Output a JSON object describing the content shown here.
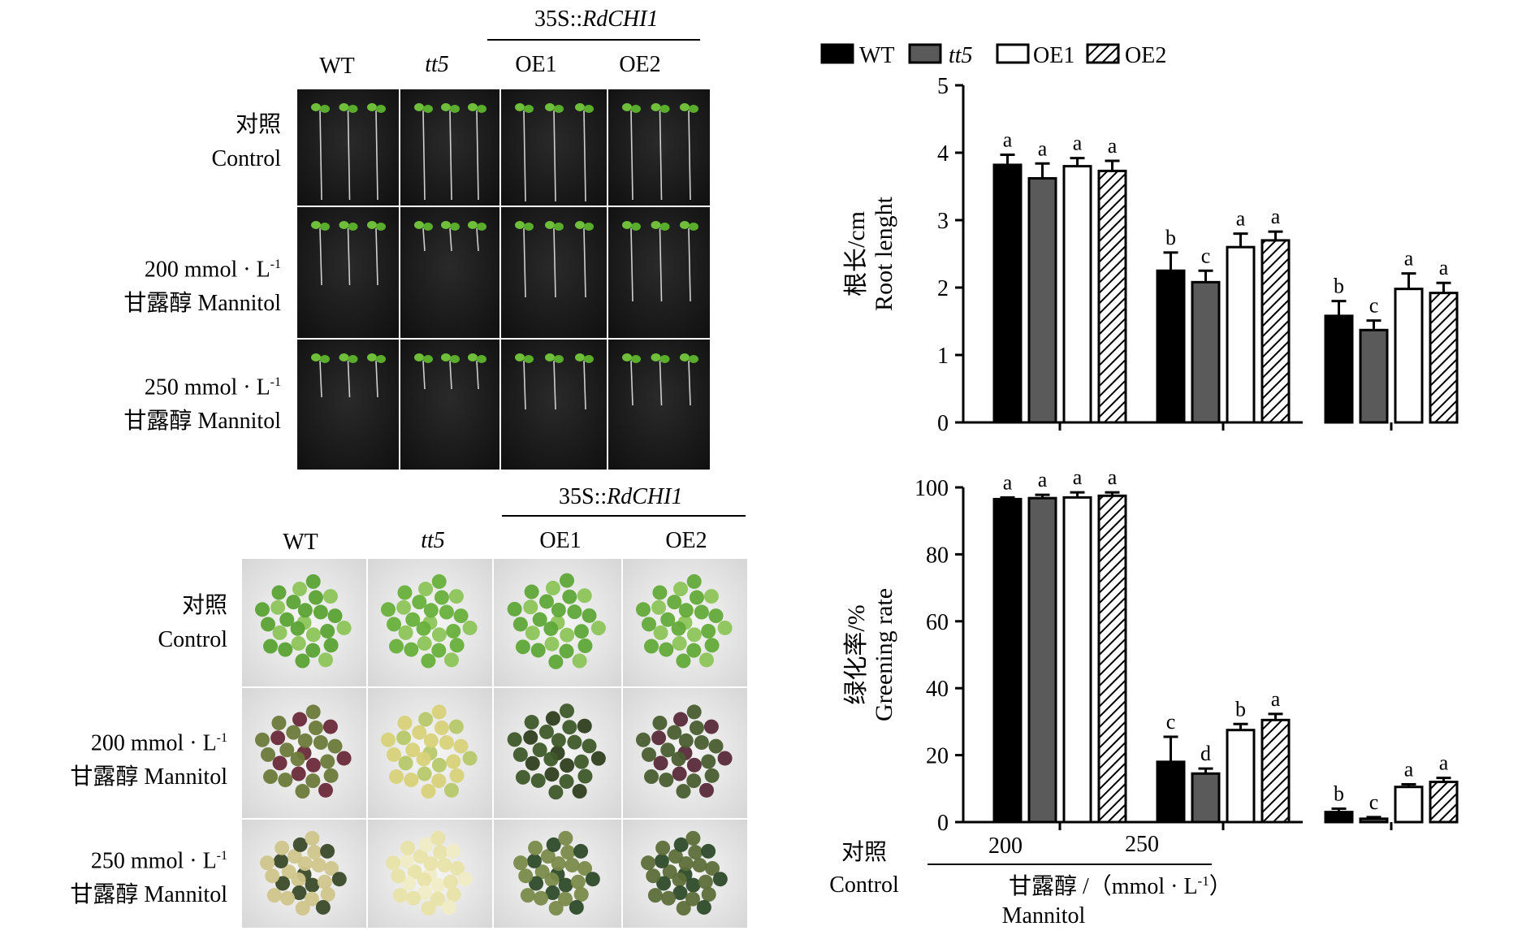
{
  "seedling_figure": {
    "construct_label": "35S::",
    "construct_gene": "RdCHI1",
    "columns": [
      "WT",
      "tt5",
      "OE1",
      "OE2"
    ],
    "rows": [
      {
        "cn": "对照",
        "en": "Control"
      },
      {
        "cn_prefix": "200 mmol · L",
        "sup": "-1",
        "cn": "甘露醇 Mannitol"
      },
      {
        "cn_prefix": "250 mmol · L",
        "sup": "-1",
        "cn": "甘露醇 Mannitol"
      }
    ]
  },
  "plate_figure": {
    "construct_label": "35S::",
    "construct_gene": "RdCHI1",
    "columns": [
      "WT",
      "tt5",
      "OE1",
      "OE2"
    ],
    "rows": [
      {
        "cn": "对照",
        "en": "Control"
      },
      {
        "cn_prefix": "200 mmol · L",
        "sup": "-1",
        "cn": "甘露醇 Mannitol"
      },
      {
        "cn_prefix": "250 mmol · L",
        "sup": "-1",
        "cn": "甘露醇 Mannitol"
      }
    ]
  },
  "x_axis": {
    "group_cn": "对照",
    "group_en": "Control",
    "treatment_cn": "甘露醇 /（mmol · L",
    "treatment_sup": "-1",
    "treatment_close": "）",
    "treatment_en": "Mannitol"
  },
  "colors": {
    "WT": "#000000",
    "tt5": "#5a5a5a",
    "OE1": "#ffffff",
    "OE2": "hatch"
  },
  "chart_data": [
    {
      "type": "bar",
      "ylabel_cn": "根长/cm",
      "ylabel_en": "Root lenght",
      "ylim": [
        0,
        5
      ],
      "yticks": [
        0,
        1,
        2,
        3,
        4,
        5
      ],
      "categories": [
        "对照 Control",
        "200",
        "250"
      ],
      "legend": "top",
      "series": [
        {
          "name": "WT",
          "values": [
            3.82,
            2.25,
            1.58
          ],
          "err": [
            0.15,
            0.27,
            0.22
          ],
          "labels": [
            "a",
            "b",
            "b"
          ]
        },
        {
          "name": "tt5",
          "values": [
            3.62,
            2.08,
            1.37
          ],
          "err": [
            0.22,
            0.17,
            0.14
          ],
          "labels": [
            "a",
            "c",
            "c"
          ]
        },
        {
          "name": "OE1",
          "values": [
            3.8,
            2.6,
            1.98
          ],
          "err": [
            0.12,
            0.2,
            0.23
          ],
          "labels": [
            "a",
            "a",
            "a"
          ]
        },
        {
          "name": "OE2",
          "values": [
            3.73,
            2.7,
            1.92
          ],
          "err": [
            0.15,
            0.13,
            0.15
          ],
          "labels": [
            "a",
            "a",
            "a"
          ]
        }
      ]
    },
    {
      "type": "bar",
      "ylabel_cn": "绿化率/%",
      "ylabel_en": "Greening rate",
      "ylim": [
        0,
        100
      ],
      "yticks": [
        0,
        20,
        40,
        60,
        80,
        100
      ],
      "categories": [
        "对照 Control",
        "200",
        "250"
      ],
      "series": [
        {
          "name": "WT",
          "values": [
            96.5,
            18,
            3
          ],
          "err": [
            0.5,
            7.5,
            1
          ],
          "labels": [
            "a",
            "c",
            "b"
          ]
        },
        {
          "name": "tt5",
          "values": [
            96.8,
            14.5,
            1
          ],
          "err": [
            1,
            1.5,
            0.5
          ],
          "labels": [
            "a",
            "d",
            "c"
          ]
        },
        {
          "name": "OE1",
          "values": [
            97,
            27.5,
            10.5
          ],
          "err": [
            1.5,
            1.8,
            0.8
          ],
          "labels": [
            "a",
            "b",
            "a"
          ]
        },
        {
          "name": "OE2",
          "values": [
            97.5,
            30.5,
            12
          ],
          "err": [
            1,
            1.8,
            1.2
          ],
          "labels": [
            "a",
            "a",
            "a"
          ]
        }
      ]
    }
  ]
}
